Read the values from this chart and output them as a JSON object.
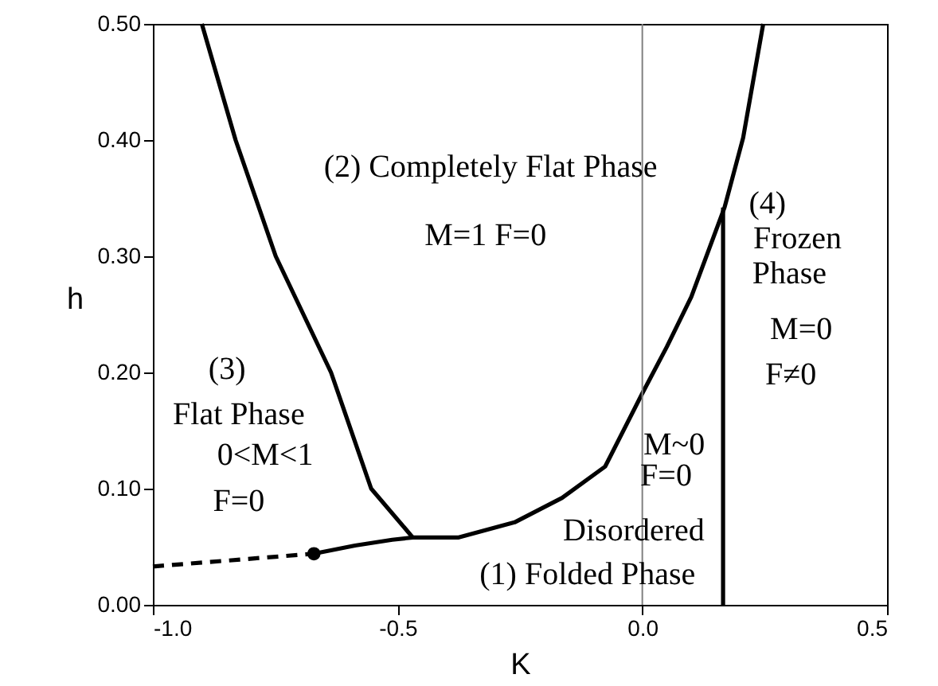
{
  "chart_data": {
    "type": "line",
    "xlabel": "K",
    "ylabel": "h",
    "xlim": [
      -1.0,
      0.5
    ],
    "ylim": [
      0,
      0.5
    ],
    "xticks": [
      {
        "value": -1,
        "label": "-1.0"
      },
      {
        "value": -0.5,
        "label": "-0.5"
      },
      {
        "value": 0,
        "label": "0.0"
      },
      {
        "value": 0.5,
        "label": "0.5"
      }
    ],
    "yticks": [
      {
        "value": 0,
        "label": "0.00"
      },
      {
        "value": 0.1,
        "label": "0.10"
      },
      {
        "value": 0.2,
        "label": "0.20"
      },
      {
        "value": 0.3,
        "label": "0.30"
      },
      {
        "value": 0.4,
        "label": "0.40"
      },
      {
        "value": 0.5,
        "label": "0.50"
      }
    ],
    "grid": false,
    "series": [
      {
        "color": "#000000",
        "x": [
          -0.9,
          -0.831,
          -0.749,
          -0.636,
          -0.554,
          -0.469
        ],
        "values": [
          0.5,
          0.4,
          0.3,
          0.2,
          0.1,
          0.058
        ]
      },
      {
        "color": "#000000",
        "x": [
          -0.671,
          -0.587,
          -0.511,
          -0.469,
          -0.375,
          -0.261,
          -0.164,
          -0.076,
          0,
          0.05,
          0.1,
          0.168,
          0.206,
          0.247
        ],
        "values": [
          0.044,
          0.051,
          0.056,
          0.058,
          0.058,
          0.071,
          0.092,
          0.119,
          0.182,
          0.222,
          0.265,
          0.342,
          0.402,
          0.5
        ]
      },
      {
        "color": "#000000",
        "line_style": "dashed",
        "x": [
          -1.0,
          -0.671
        ],
        "values": [
          0.033,
          0.044
        ]
      },
      {
        "color": "#000000",
        "x": [
          0.165,
          0.165
        ],
        "values": [
          0,
          0.342
        ]
      },
      {
        "type": "scatter",
        "color": "#000000",
        "marker": "circle",
        "x": [
          -0.671
        ],
        "values": [
          0.044
        ]
      }
    ],
    "ref_lines": [
      {
        "axis": "x",
        "value": 0,
        "color": "#808080"
      }
    ],
    "annotations": [
      "(2) Completely Flat Phase",
      "M=1  F=0",
      "(4)",
      "Frozen",
      "Phase",
      "M=0",
      "F≠0",
      "(3)",
      "Flat Phase",
      "0<M<1",
      "F=0",
      "M~0",
      "F=0",
      "Disordered",
      "(1) Folded Phase"
    ]
  }
}
